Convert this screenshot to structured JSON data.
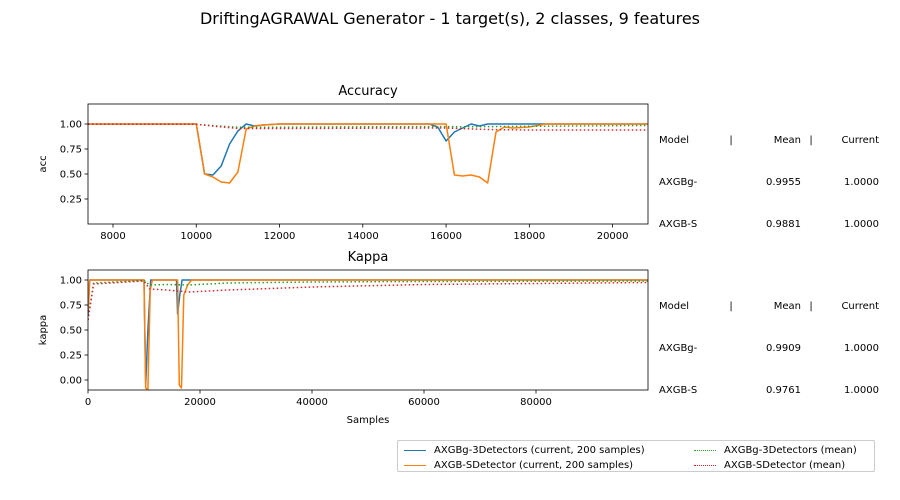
{
  "suptitle": "DriftingAGRAWAL Generator - 1 target(s), 2 classes, 9 features",
  "colors": {
    "axgbg_current": "#1f77b4",
    "axgbs_current": "#ff7f0e",
    "axgbg_mean": "#2ca02c",
    "axgbs_mean": "#d62728"
  },
  "stats_header": {
    "model": "Model",
    "sep": "|",
    "mean": "Mean",
    "current": "Current"
  },
  "accuracy_stats": [
    {
      "model": "AXGBg-",
      "mean": "0.9955",
      "current": "1.0000"
    },
    {
      "model": "AXGB-S",
      "mean": "0.9881",
      "current": "1.0000"
    }
  ],
  "kappa_stats": [
    {
      "model": "AXGBg-",
      "mean": "0.9909",
      "current": "1.0000"
    },
    {
      "model": "AXGB-S",
      "mean": "0.9761",
      "current": "1.0000"
    }
  ],
  "legend": [
    {
      "label": "AXGBg-3Detectors  (current, 200 samples)",
      "color": "#1f77b4",
      "style": "solid"
    },
    {
      "label": "AXGB-SDetector  (current, 200 samples)",
      "color": "#ff7f0e",
      "style": "solid"
    },
    {
      "label": "AXGBg-3Detectors (mean)",
      "color": "#2ca02c",
      "style": "dotted"
    },
    {
      "label": "AXGB-SDetector (mean)",
      "color": "#d62728",
      "style": "dotted"
    }
  ],
  "chart_data": [
    {
      "type": "line",
      "title": "Accuracy",
      "xlabel": "",
      "ylabel": "acc",
      "xlim": [
        7400,
        20850
      ],
      "ylim": [
        0.0,
        1.2
      ],
      "xticks": [
        8000,
        10000,
        12000,
        14000,
        16000,
        18000,
        20000
      ],
      "yticks": [
        0.25,
        0.5,
        0.75,
        1.0
      ],
      "ytick_labels": [
        "0.25",
        "0.50",
        "0.75",
        "1.00"
      ],
      "series": [
        {
          "key": "axgbg_current",
          "color": "#1f77b4",
          "style": "solid",
          "points": [
            [
              7400,
              1.0
            ],
            [
              10000,
              1.0
            ],
            [
              10200,
              0.5
            ],
            [
              10400,
              0.49
            ],
            [
              10600,
              0.58
            ],
            [
              10800,
              0.8
            ],
            [
              11000,
              0.93
            ],
            [
              11200,
              1.0
            ],
            [
              11400,
              0.98
            ],
            [
              11600,
              0.99
            ],
            [
              12000,
              1.0
            ],
            [
              15600,
              1.0
            ],
            [
              15800,
              0.97
            ],
            [
              16000,
              0.83
            ],
            [
              16200,
              0.92
            ],
            [
              16400,
              0.96
            ],
            [
              16600,
              1.0
            ],
            [
              16800,
              0.98
            ],
            [
              17000,
              1.0
            ],
            [
              20850,
              1.0
            ]
          ]
        },
        {
          "key": "axgbs_current",
          "color": "#ff7f0e",
          "style": "solid",
          "points": [
            [
              7400,
              1.0
            ],
            [
              10000,
              1.0
            ],
            [
              10200,
              0.5
            ],
            [
              10400,
              0.47
            ],
            [
              10600,
              0.42
            ],
            [
              10800,
              0.41
            ],
            [
              11000,
              0.52
            ],
            [
              11200,
              0.95
            ],
            [
              11400,
              0.98
            ],
            [
              11600,
              0.99
            ],
            [
              12000,
              1.0
            ],
            [
              16000,
              1.0
            ],
            [
              16200,
              0.49
            ],
            [
              16400,
              0.48
            ],
            [
              16600,
              0.49
            ],
            [
              16800,
              0.47
            ],
            [
              17000,
              0.41
            ],
            [
              17200,
              0.92
            ],
            [
              17400,
              0.97
            ],
            [
              17600,
              0.96
            ],
            [
              18000,
              0.97
            ],
            [
              18400,
              1.0
            ],
            [
              20850,
              1.0
            ]
          ]
        },
        {
          "key": "axgbg_mean",
          "color": "#2ca02c",
          "style": "dotted",
          "points": [
            [
              7400,
              0.998
            ],
            [
              10000,
              0.997
            ],
            [
              10500,
              0.98
            ],
            [
              11000,
              0.967
            ],
            [
              12000,
              0.968
            ],
            [
              14000,
              0.972
            ],
            [
              16000,
              0.974
            ],
            [
              16500,
              0.972
            ],
            [
              18000,
              0.977
            ],
            [
              20850,
              0.985
            ]
          ]
        },
        {
          "key": "axgbs_mean",
          "color": "#d62728",
          "style": "dotted",
          "points": [
            [
              7400,
              0.998
            ],
            [
              10000,
              0.997
            ],
            [
              10500,
              0.975
            ],
            [
              11000,
              0.955
            ],
            [
              12000,
              0.955
            ],
            [
              14000,
              0.958
            ],
            [
              16000,
              0.96
            ],
            [
              17000,
              0.945
            ],
            [
              18000,
              0.94
            ],
            [
              20850,
              0.94
            ]
          ]
        }
      ]
    },
    {
      "type": "line",
      "title": "Kappa",
      "xlabel": "Samples",
      "ylabel": "kappa",
      "xlim": [
        0,
        100000
      ],
      "ylim": [
        -0.1,
        1.1
      ],
      "xticks": [
        0,
        20000,
        40000,
        60000,
        80000
      ],
      "yticks": [
        0.0,
        0.25,
        0.5,
        0.75,
        1.0
      ],
      "ytick_labels": [
        "0.00",
        "0.25",
        "0.50",
        "0.75",
        "1.00"
      ],
      "series": [
        {
          "key": "axgbg_current",
          "color": "#1f77b4",
          "style": "solid",
          "points": [
            [
              0,
              0.65
            ],
            [
              300,
              1.0
            ],
            [
              10000,
              1.0
            ],
            [
              10300,
              -0.05
            ],
            [
              10700,
              0.5
            ],
            [
              11200,
              1.0
            ],
            [
              15800,
              1.0
            ],
            [
              16000,
              0.66
            ],
            [
              16400,
              0.85
            ],
            [
              16800,
              1.0
            ],
            [
              100000,
              1.0
            ]
          ]
        },
        {
          "key": "axgbs_current",
          "color": "#ff7f0e",
          "style": "solid",
          "points": [
            [
              0,
              0.7
            ],
            [
              300,
              1.0
            ],
            [
              10000,
              1.0
            ],
            [
              10300,
              -0.08
            ],
            [
              10700,
              -0.1
            ],
            [
              11100,
              0.9
            ],
            [
              11500,
              1.0
            ],
            [
              16000,
              1.0
            ],
            [
              16300,
              -0.05
            ],
            [
              16700,
              -0.08
            ],
            [
              17100,
              0.85
            ],
            [
              17800,
              0.95
            ],
            [
              18500,
              1.0
            ],
            [
              100000,
              1.0
            ]
          ]
        },
        {
          "key": "axgbg_mean",
          "color": "#2ca02c",
          "style": "dotted",
          "points": [
            [
              0,
              0.6
            ],
            [
              1000,
              0.97
            ],
            [
              10000,
              0.995
            ],
            [
              11000,
              0.95
            ],
            [
              14000,
              0.955
            ],
            [
              18000,
              0.95
            ],
            [
              25000,
              0.97
            ],
            [
              40000,
              0.98
            ],
            [
              60000,
              0.985
            ],
            [
              100000,
              0.99
            ]
          ]
        },
        {
          "key": "axgbs_mean",
          "color": "#d62728",
          "style": "dotted",
          "points": [
            [
              0,
              0.6
            ],
            [
              1000,
              0.96
            ],
            [
              10000,
              0.99
            ],
            [
              11000,
              0.91
            ],
            [
              14000,
              0.9
            ],
            [
              18000,
              0.88
            ],
            [
              25000,
              0.9
            ],
            [
              40000,
              0.93
            ],
            [
              60000,
              0.955
            ],
            [
              100000,
              0.975
            ]
          ]
        }
      ]
    }
  ]
}
